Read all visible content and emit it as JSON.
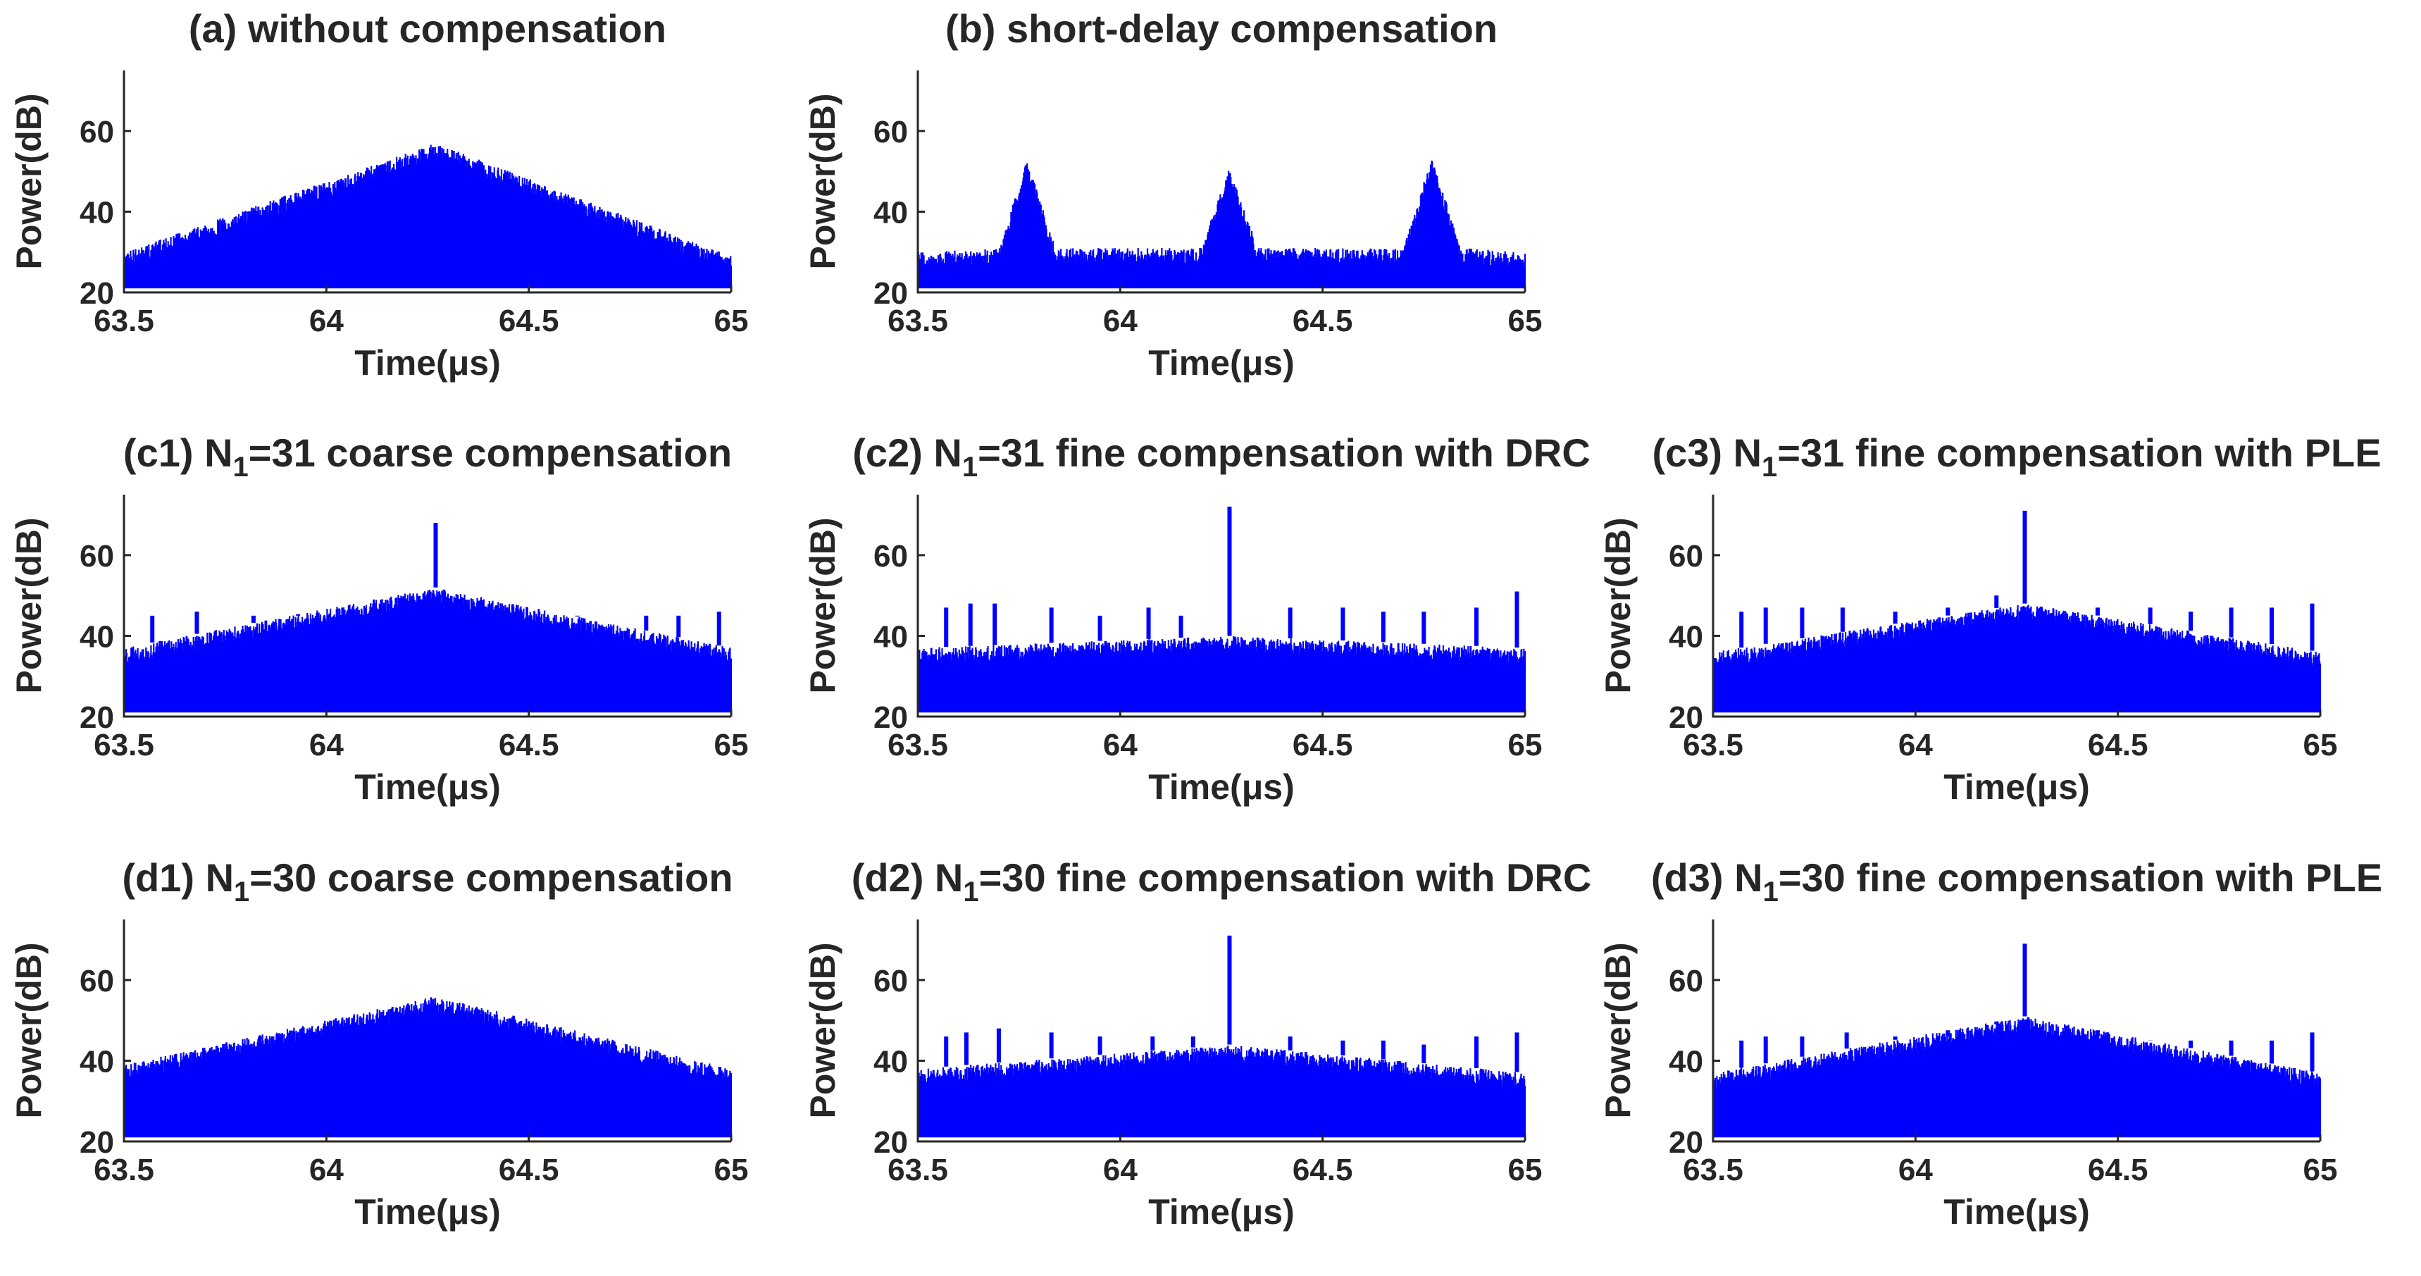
{
  "figure": {
    "line_color": "#0000ff",
    "axis_color": "#262626",
    "background": "#ffffff"
  },
  "chart_data": [
    {
      "id": "a",
      "type": "line",
      "title": "(a) without compensation",
      "xlabel": "Time(μs)",
      "ylabel": "Power(dB)",
      "xlim": [
        63.5,
        65
      ],
      "ylim": [
        20,
        75
      ],
      "xticks": [
        "63.5",
        "64",
        "64.5",
        "65"
      ],
      "yticks": [
        "20",
        "40",
        "60"
      ],
      "series": [
        {
          "name": "signal",
          "floor": 21,
          "envelope": [
            [
              63.5,
              30
            ],
            [
              64.27,
              57
            ],
            [
              65,
              29
            ]
          ],
          "spikes": []
        }
      ]
    },
    {
      "id": "b",
      "type": "line",
      "title": "(b) short-delay compensation",
      "xlabel": "Time(μs)",
      "ylabel": "Power(dB)",
      "xlim": [
        63.5,
        65
      ],
      "ylim": [
        20,
        75
      ],
      "xticks": [
        "63.5",
        "64",
        "64.5",
        "65"
      ],
      "yticks": [
        "20",
        "40",
        "60"
      ],
      "series": [
        {
          "name": "signal",
          "floor": 21,
          "envelope": [
            [
              63.5,
              30
            ],
            [
              63.7,
              31
            ],
            [
              63.77,
              53
            ],
            [
              63.84,
              31
            ],
            [
              64.2,
              31
            ],
            [
              64.27,
              51
            ],
            [
              64.34,
              31
            ],
            [
              64.7,
              31
            ],
            [
              64.77,
              54
            ],
            [
              64.84,
              31
            ],
            [
              65,
              30
            ]
          ],
          "spikes": []
        }
      ]
    },
    {
      "id": "c1",
      "type": "line",
      "title": "(c1) N",
      "title_sub": "1",
      "title_rest": "=31 coarse compensation",
      "xlabel": "Time(μs)",
      "ylabel": "Power(dB)",
      "xlim": [
        63.5,
        65
      ],
      "ylim": [
        20,
        75
      ],
      "xticks": [
        "63.5",
        "64",
        "64.5",
        "65"
      ],
      "yticks": [
        "20",
        "40",
        "60"
      ],
      "series": [
        {
          "name": "signal",
          "floor": 21,
          "envelope": [
            [
              63.5,
              37
            ],
            [
              64.27,
              52
            ],
            [
              65,
              37
            ]
          ],
          "spikes": [
            [
              63.57,
              45
            ],
            [
              63.68,
              46
            ],
            [
              63.82,
              45
            ],
            [
              63.93,
              45
            ],
            [
              64.27,
              68
            ],
            [
              64.62,
              45
            ],
            [
              64.79,
              45
            ],
            [
              64.87,
              45
            ],
            [
              64.97,
              46
            ]
          ]
        }
      ]
    },
    {
      "id": "c2",
      "type": "line",
      "title": "(c2) N",
      "title_sub": "1",
      "title_rest": "=31 fine compensation with DRC",
      "xlabel": "Time(μs)",
      "ylabel": "Power(dB)",
      "xlim": [
        63.5,
        65
      ],
      "ylim": [
        20,
        75
      ],
      "xticks": [
        "63.5",
        "64",
        "64.5",
        "65"
      ],
      "yticks": [
        "20",
        "40",
        "60"
      ],
      "series": [
        {
          "name": "signal",
          "floor": 21,
          "envelope": [
            [
              63.5,
              37
            ],
            [
              64.27,
              40
            ],
            [
              65,
              37
            ]
          ],
          "spikes": [
            [
              63.57,
              47
            ],
            [
              63.63,
              48
            ],
            [
              63.69,
              48
            ],
            [
              63.83,
              47
            ],
            [
              63.95,
              45
            ],
            [
              64.07,
              47
            ],
            [
              64.15,
              45
            ],
            [
              64.27,
              72
            ],
            [
              64.42,
              47
            ],
            [
              64.55,
              47
            ],
            [
              64.65,
              46
            ],
            [
              64.75,
              46
            ],
            [
              64.88,
              47
            ],
            [
              64.98,
              51
            ]
          ]
        }
      ]
    },
    {
      "id": "c3",
      "type": "line",
      "title": "(c3) N",
      "title_sub": "1",
      "title_rest": "=31 fine compensation with PLE",
      "xlabel": "Time(μs)",
      "ylabel": "Power(dB)",
      "xlim": [
        63.5,
        65
      ],
      "ylim": [
        20,
        75
      ],
      "xticks": [
        "63.5",
        "64",
        "64.5",
        "65"
      ],
      "yticks": [
        "20",
        "40",
        "60"
      ],
      "series": [
        {
          "name": "signal",
          "floor": 21,
          "envelope": [
            [
              63.5,
              36
            ],
            [
              64.27,
              48
            ],
            [
              65,
              36
            ]
          ],
          "spikes": [
            [
              63.57,
              46
            ],
            [
              63.63,
              47
            ],
            [
              63.72,
              47
            ],
            [
              63.82,
              47
            ],
            [
              63.95,
              46
            ],
            [
              64.08,
              47
            ],
            [
              64.2,
              50
            ],
            [
              64.27,
              71
            ],
            [
              64.45,
              47
            ],
            [
              64.58,
              47
            ],
            [
              64.68,
              46
            ],
            [
              64.78,
              47
            ],
            [
              64.88,
              47
            ],
            [
              64.98,
              48
            ]
          ]
        }
      ]
    },
    {
      "id": "d1",
      "type": "line",
      "title": "(d1) N",
      "title_sub": "1",
      "title_rest": "=30 coarse compensation",
      "xlabel": "Time(μs)",
      "ylabel": "Power(dB)",
      "xlim": [
        63.5,
        65
      ],
      "ylim": [
        20,
        75
      ],
      "xticks": [
        "63.5",
        "64",
        "64.5",
        "65"
      ],
      "yticks": [
        "20",
        "40",
        "60"
      ],
      "series": [
        {
          "name": "signal",
          "floor": 21,
          "envelope": [
            [
              63.5,
              39
            ],
            [
              64.27,
              56
            ],
            [
              65,
              38
            ]
          ],
          "spikes": []
        }
      ]
    },
    {
      "id": "d2",
      "type": "line",
      "title": "(d2) N",
      "title_sub": "1",
      "title_rest": "=30 fine compensation with DRC",
      "xlabel": "Time(μs)",
      "ylabel": "Power(dB)",
      "xlim": [
        63.5,
        65
      ],
      "ylim": [
        20,
        75
      ],
      "xticks": [
        "63.5",
        "64",
        "64.5",
        "65"
      ],
      "yticks": [
        "20",
        "40",
        "60"
      ],
      "series": [
        {
          "name": "signal",
          "floor": 21,
          "envelope": [
            [
              63.5,
              38
            ],
            [
              64.27,
              44
            ],
            [
              65,
              37
            ]
          ],
          "spikes": [
            [
              63.57,
              46
            ],
            [
              63.62,
              47
            ],
            [
              63.7,
              48
            ],
            [
              63.83,
              47
            ],
            [
              63.95,
              46
            ],
            [
              64.08,
              46
            ],
            [
              64.18,
              46
            ],
            [
              64.27,
              71
            ],
            [
              64.42,
              46
            ],
            [
              64.55,
              45
            ],
            [
              64.65,
              45
            ],
            [
              64.75,
              44
            ],
            [
              64.88,
              46
            ],
            [
              64.98,
              47
            ]
          ]
        }
      ]
    },
    {
      "id": "d3",
      "type": "line",
      "title": "(d3) N",
      "title_sub": "1",
      "title_rest": "=30 fine compensation with PLE",
      "xlabel": "Time(μs)",
      "ylabel": "Power(dB)",
      "xlim": [
        63.5,
        65
      ],
      "ylim": [
        20,
        75
      ],
      "xticks": [
        "63.5",
        "64",
        "64.5",
        "65"
      ],
      "yticks": [
        "20",
        "40",
        "60"
      ],
      "series": [
        {
          "name": "signal",
          "floor": 21,
          "envelope": [
            [
              63.5,
              37
            ],
            [
              64.27,
              51
            ],
            [
              65,
              37
            ]
          ],
          "spikes": [
            [
              63.57,
              45
            ],
            [
              63.63,
              46
            ],
            [
              63.72,
              46
            ],
            [
              63.83,
              47
            ],
            [
              63.95,
              46
            ],
            [
              64.08,
              46
            ],
            [
              64.2,
              49
            ],
            [
              64.27,
              69
            ],
            [
              64.45,
              46
            ],
            [
              64.58,
              45
            ],
            [
              64.68,
              45
            ],
            [
              64.78,
              45
            ],
            [
              64.88,
              45
            ],
            [
              64.98,
              47
            ]
          ]
        }
      ]
    }
  ]
}
